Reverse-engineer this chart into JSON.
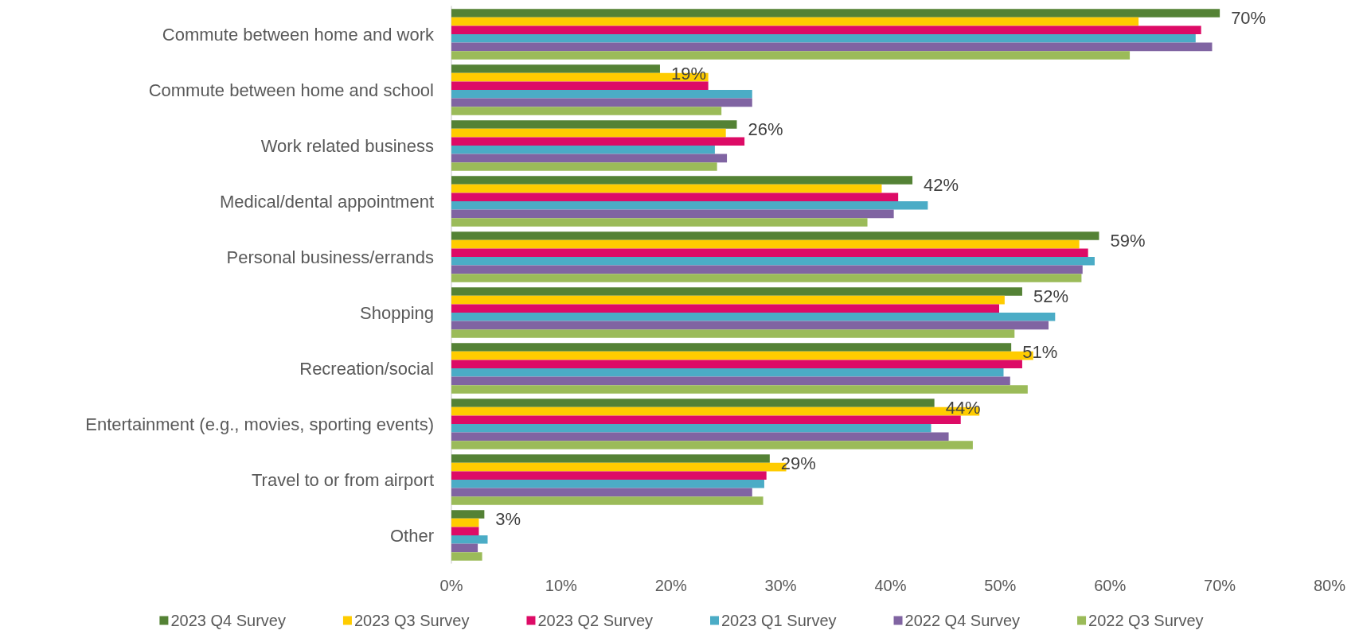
{
  "chart_data": {
    "type": "bar",
    "orientation": "horizontal",
    "categories": [
      "Commute between home and work",
      "Commute between home and school",
      "Work related business",
      "Medical/dental appointment",
      "Personal business/errands",
      "Shopping",
      "Recreation/social",
      "Entertainment (e.g., movies, sporting events)",
      "Travel to or from airport",
      "Other"
    ],
    "series": [
      {
        "name": "2023 Q4 Survey",
        "color": "#548235",
        "values": [
          70,
          19,
          26,
          42,
          59,
          52,
          51,
          44,
          29,
          3
        ],
        "value_labels": [
          "70%",
          "19%",
          "26%",
          "42%",
          "59%",
          "52%",
          "51%",
          "44%",
          "29%",
          "3%"
        ]
      },
      {
        "name": "2023 Q3 Survey",
        "color": "#ffcc00",
        "values": [
          62.6,
          23.4,
          25.0,
          39.2,
          57.2,
          50.4,
          53.0,
          48.1,
          30.5,
          2.5
        ]
      },
      {
        "name": "2023 Q2 Survey",
        "color": "#dd0b66",
        "values": [
          68.3,
          23.4,
          26.7,
          40.7,
          58.0,
          49.9,
          52.0,
          46.4,
          28.7,
          2.5
        ]
      },
      {
        "name": "2023 Q1 Survey",
        "color": "#4bacc6",
        "values": [
          67.8,
          27.4,
          24.0,
          43.4,
          58.6,
          55.0,
          50.3,
          43.7,
          28.5,
          3.3
        ]
      },
      {
        "name": "2022 Q4 Survey",
        "color": "#8064a2",
        "values": [
          69.3,
          27.4,
          25.1,
          40.3,
          57.5,
          54.4,
          50.9,
          45.3,
          27.4,
          2.4
        ]
      },
      {
        "name": "2022 Q3 Survey",
        "color": "#9bbb59",
        "values": [
          61.8,
          24.6,
          24.2,
          37.9,
          57.4,
          51.3,
          52.5,
          47.5,
          28.4,
          2.8
        ]
      }
    ],
    "xlim": [
      0,
      80
    ],
    "xticks": [
      {
        "value": 0,
        "label": "0%"
      },
      {
        "value": 10,
        "label": "10%"
      },
      {
        "value": 20,
        "label": "20%"
      },
      {
        "value": 30,
        "label": "30%"
      },
      {
        "value": 40,
        "label": "40%"
      },
      {
        "value": 50,
        "label": "50%"
      },
      {
        "value": 60,
        "label": "60%"
      },
      {
        "value": 70,
        "label": "70%"
      },
      {
        "value": 80,
        "label": "80%"
      }
    ],
    "grid": false,
    "legend": "bottom"
  }
}
